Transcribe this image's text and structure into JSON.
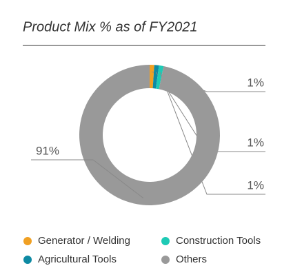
{
  "chart_data": {
    "type": "donut",
    "title": "Product Mix % as of FY2021",
    "categories": [
      "Generator / Welding",
      "Agricultural Tools",
      "Construction Tools",
      "Others"
    ],
    "values": [
      1,
      1,
      1,
      91
    ],
    "value_labels": [
      "1%",
      "1%",
      "1%",
      "91%"
    ],
    "colors": [
      "#f0a023",
      "#0e8aa3",
      "#1ecab5",
      "#999999"
    ],
    "legend": "bottom"
  }
}
